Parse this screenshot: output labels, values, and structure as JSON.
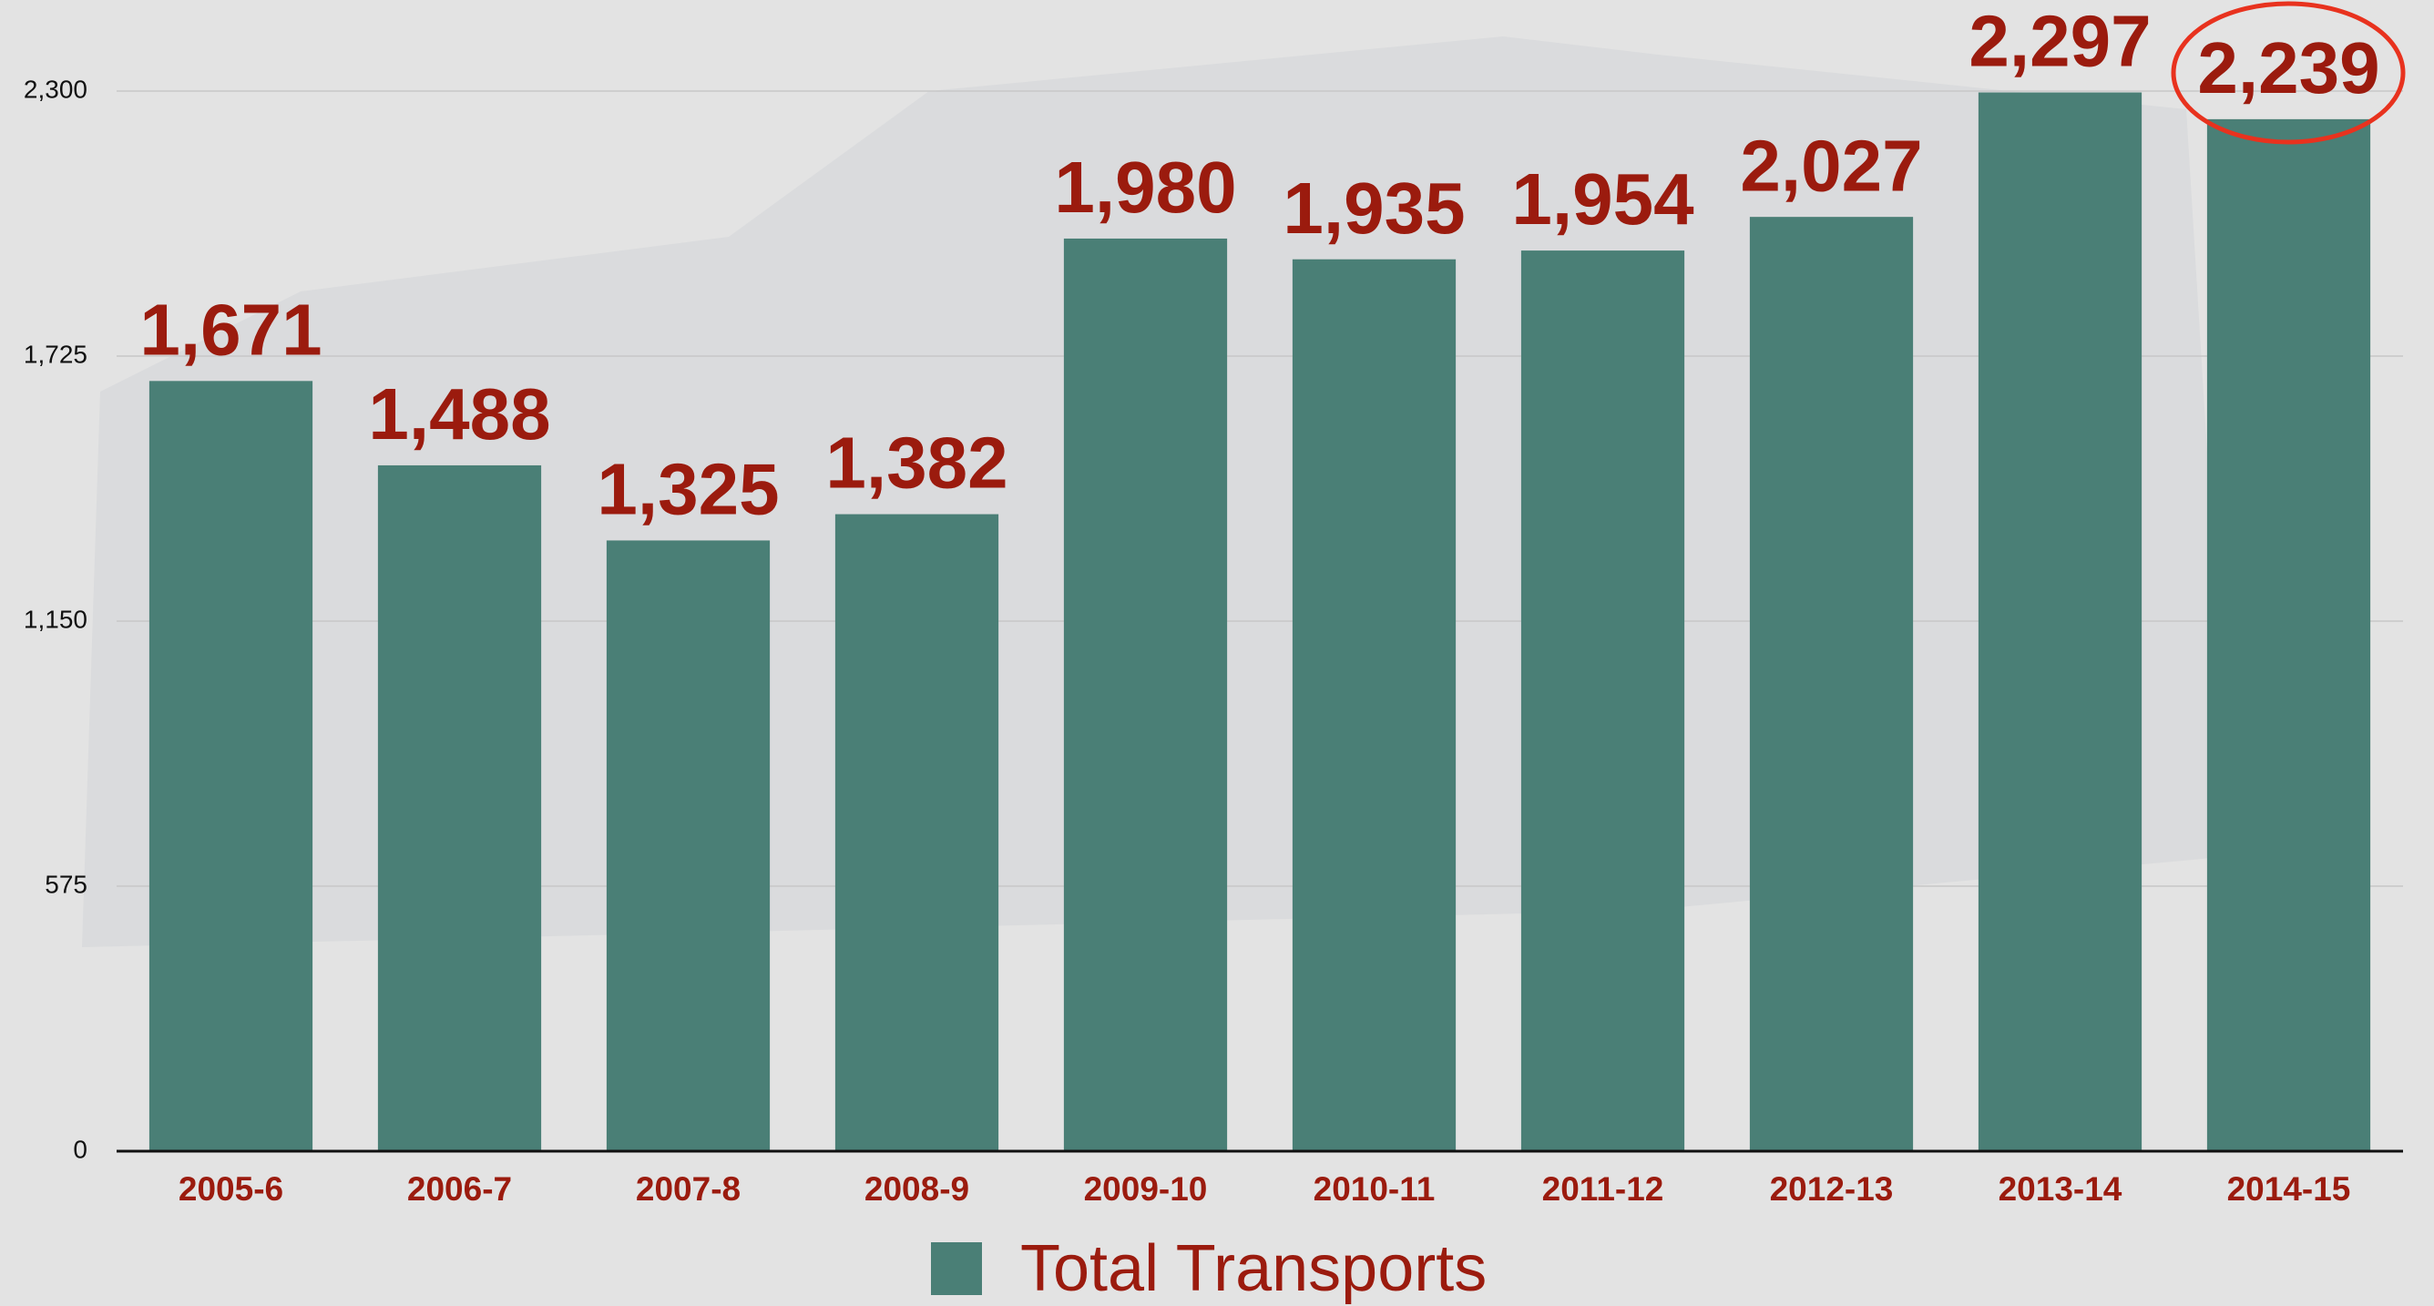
{
  "chart_data": {
    "type": "bar",
    "categories": [
      "2005-6",
      "2006-7",
      "2007-8",
      "2008-9",
      "2009-10",
      "2010-11",
      "2011-12",
      "2012-13",
      "2013-14",
      "2014-15"
    ],
    "values": [
      1671,
      1488,
      1325,
      1382,
      1980,
      1935,
      1954,
      2027,
      2297,
      2239
    ],
    "value_labels": [
      "1,671",
      "1,488",
      "1,325",
      "1,382",
      "1,980",
      "1,935",
      "1,954",
      "2,027",
      "2,297",
      "2,239"
    ],
    "series_name": "Total Transports",
    "color": "#4a7f76",
    "label_color": "#9b1b0e",
    "ylim": [
      0,
      2300
    ],
    "yticks": [
      0,
      575,
      {
        "value": 1150,
        "label": "1,150"
      },
      {
        "value": 1725,
        "label": "1,725"
      },
      {
        "value": 2300,
        "label": "2,300"
      }
    ],
    "grid": true
  }
}
